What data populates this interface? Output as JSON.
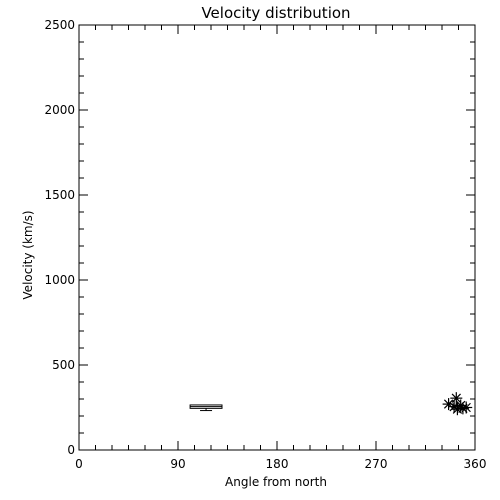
{
  "chart_data": {
    "type": "scatter",
    "title": "Velocity distribution",
    "xlabel": "Angle from north",
    "ylabel": "Velocity (km/s)",
    "xlim": [
      0,
      360
    ],
    "ylim": [
      0,
      2500
    ],
    "xticks": [
      0,
      90,
      180,
      270,
      360
    ],
    "yticks": [
      0,
      500,
      1000,
      1500,
      2000,
      2500
    ],
    "grid": false,
    "box": {
      "x_start": 101,
      "x_end": 130,
      "q1": 245,
      "median": 255,
      "q3": 265,
      "whisker_low": 232,
      "whisker_high": 265
    },
    "points": [
      {
        "x": 336,
        "y": 270
      },
      {
        "x": 341,
        "y": 255
      },
      {
        "x": 343,
        "y": 305
      },
      {
        "x": 344,
        "y": 240
      },
      {
        "x": 347,
        "y": 262
      },
      {
        "x": 349,
        "y": 245
      },
      {
        "x": 352,
        "y": 250
      }
    ]
  }
}
